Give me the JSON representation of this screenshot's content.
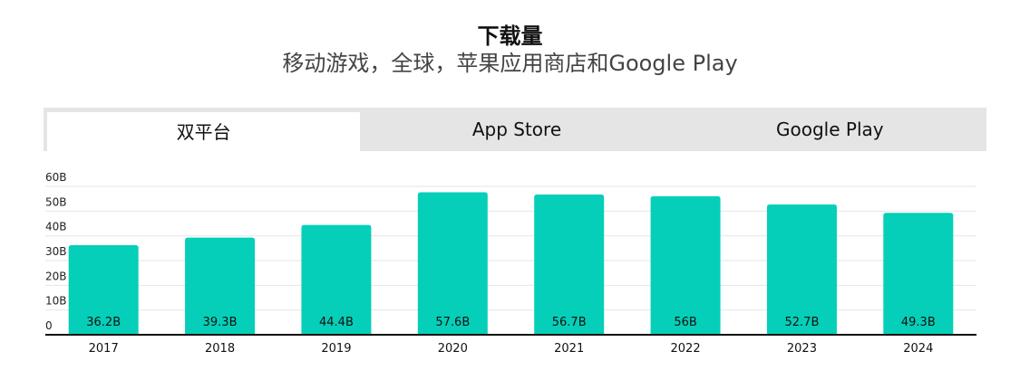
{
  "header": {
    "title": "下载量",
    "subtitle": "移动游戏，全球，苹果应用商店和Google Play"
  },
  "tabs": [
    {
      "label": "双平台",
      "active": true
    },
    {
      "label": "App Store",
      "active": false
    },
    {
      "label": "Google Play",
      "active": false
    }
  ],
  "colors": {
    "bar": "#05cfb8",
    "tab_bg": "#e5e5e5",
    "grid": "#e6e6e6",
    "axis": "#111111"
  },
  "chart_data": {
    "type": "bar",
    "categories": [
      "2017",
      "2018",
      "2019",
      "2020",
      "2021",
      "2022",
      "2023",
      "2024"
    ],
    "values": [
      36.2,
      39.3,
      44.4,
      57.6,
      56.7,
      56,
      52.7,
      49.3
    ],
    "value_labels": [
      "36.2B",
      "39.3B",
      "44.4B",
      "57.6B",
      "56.7B",
      "56B",
      "52.7B",
      "49.3B"
    ],
    "ylim": [
      0,
      60
    ],
    "yticks": [
      0,
      10,
      20,
      30,
      40,
      50,
      60
    ],
    "ytick_labels": [
      "0",
      "10B",
      "20B",
      "30B",
      "40B",
      "50B",
      "60B"
    ],
    "grid": true,
    "legend": "none"
  }
}
